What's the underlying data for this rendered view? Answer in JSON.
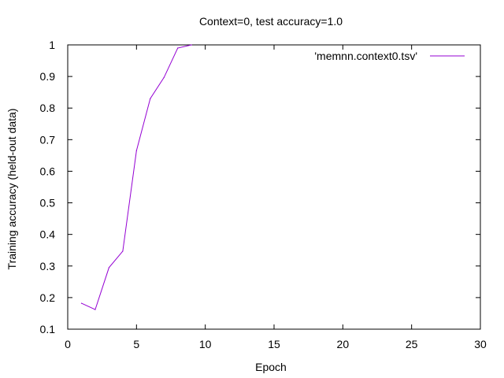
{
  "chart_data": {
    "type": "line",
    "title": "Context=0, test accuracy=1.0",
    "xlabel": "Epoch",
    "ylabel": "Training accuracy (held-out data)",
    "xlim": [
      0,
      30
    ],
    "ylim": [
      0.1,
      1.0
    ],
    "xticks": [
      0,
      5,
      10,
      15,
      20,
      25,
      30
    ],
    "yticks": [
      0.1,
      0.2,
      0.3,
      0.4,
      0.5,
      0.6,
      0.7,
      0.8,
      0.9,
      1.0
    ],
    "xtick_labels": [
      "0",
      "5",
      "10",
      "15",
      "20",
      "25",
      "30"
    ],
    "ytick_labels": [
      "0.1",
      "0.2",
      "0.3",
      "0.4",
      "0.5",
      "0.6",
      "0.7",
      "0.8",
      "0.9",
      "1"
    ],
    "grid": false,
    "legend_position": "top-right",
    "series": [
      {
        "name": "'memnn.context0.tsv'",
        "color": "#9400d3",
        "x": [
          1,
          2,
          3,
          4,
          5,
          6,
          7,
          8,
          9
        ],
        "y": [
          0.182,
          0.162,
          0.295,
          0.347,
          0.665,
          0.83,
          0.897,
          0.99,
          1.0
        ]
      }
    ]
  }
}
